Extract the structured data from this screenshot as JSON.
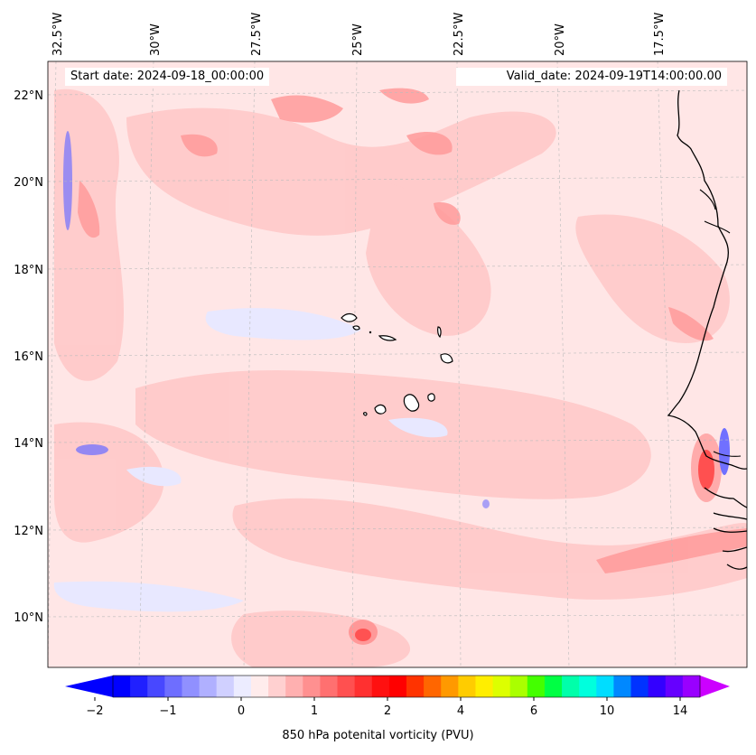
{
  "title_bar": {
    "start_date": "Start date: 2024-09-18_00:00:00",
    "valid_date": "Valid_date: 2024-09-19T14:00:00.00"
  },
  "map": {
    "variable": "850 hPa potential vorticity",
    "longitude_labels": [
      "32.5°W",
      "30°W",
      "27.5°W",
      "25°W",
      "22.5°W",
      "20°W",
      "17.5°W"
    ],
    "latitude_labels": [
      "22°N",
      "20°N",
      "18°N",
      "16°N",
      "14°N",
      "12°N",
      "10°N"
    ],
    "features": [
      "West African coastline",
      "Cape Verde islands"
    ],
    "colors": {
      "background_field": "#ffe6e6",
      "light_positive": "#ffc9c9",
      "medium_positive": "#ff9a9a",
      "strong_positive": "#ff3030",
      "weak_negative": "#e8e8ff",
      "negative": "#7070ff",
      "coast": "#000000"
    }
  },
  "colorbar": {
    "label": "850 hPa potenital vorticity (PVU)",
    "tick_labels": [
      "−2",
      "−1",
      "0",
      "1",
      "2",
      "4",
      "6",
      "10",
      "14"
    ],
    "colors": [
      "#0000ff",
      "#2020ff",
      "#4848ff",
      "#6e6eff",
      "#9090ff",
      "#b0b0ff",
      "#d0d0ff",
      "#ececff",
      "#ffecec",
      "#ffd0d0",
      "#ffb0b0",
      "#ff9090",
      "#ff7070",
      "#ff5050",
      "#ff3030",
      "#ff1010",
      "#ff0000",
      "#ff3300",
      "#ff6600",
      "#ff9900",
      "#ffcc00",
      "#ffee00",
      "#ddff00",
      "#aaff00",
      "#44ff00",
      "#00ff44",
      "#00ffaa",
      "#00ffdd",
      "#00ddff",
      "#0088ff",
      "#0033ff",
      "#3300ff",
      "#6600ff",
      "#9900ff"
    ],
    "under_color": "#0000ff",
    "over_color": "#cc00ff"
  }
}
